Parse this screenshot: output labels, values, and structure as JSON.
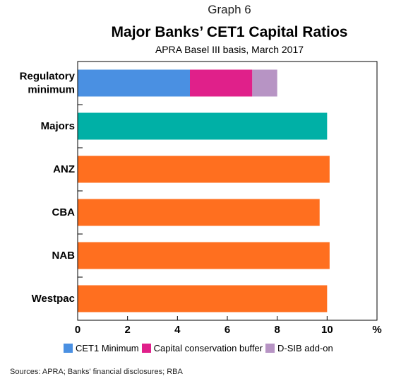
{
  "header": {
    "graph_number": "Graph 6",
    "title": "Major Banks’ CET1 Capital Ratios",
    "subtitle": "APRA Basel III basis, March 2017"
  },
  "sources": "Sources:  APRA; Banks' financial disclosures; RBA",
  "chart_data": {
    "type": "bar",
    "orientation": "horizontal",
    "stacked": true,
    "title": "Major Banks’ CET1 Capital Ratios",
    "subtitle": "APRA Basel III basis, March 2017",
    "categories": [
      "Regulatory minimum",
      "Majors",
      "ANZ",
      "CBA",
      "NAB",
      "Westpac"
    ],
    "category_labels": [
      [
        "Regulatory",
        "minimum"
      ],
      [
        "Majors"
      ],
      [
        "ANZ"
      ],
      [
        "CBA"
      ],
      [
        "NAB"
      ],
      [
        "Westpac"
      ]
    ],
    "series": [
      {
        "name": "CET1 Minimum",
        "color": "#4a90e2",
        "values": [
          4.5,
          null,
          null,
          null,
          null,
          null
        ]
      },
      {
        "name": "Capital conservation buffer",
        "color": "#e0208a",
        "values": [
          2.5,
          null,
          null,
          null,
          null,
          null
        ]
      },
      {
        "name": "D-SIB add-on",
        "color": "#b794c4",
        "values": [
          1.0,
          null,
          null,
          null,
          null,
          null
        ]
      }
    ],
    "bars": [
      {
        "category": "Majors",
        "value": 10.0,
        "color": "#00b0a6"
      },
      {
        "category": "ANZ",
        "value": 10.1,
        "color": "#ff6f1f"
      },
      {
        "category": "CBA",
        "value": 9.7,
        "color": "#ff6f1f"
      },
      {
        "category": "NAB",
        "value": 10.1,
        "color": "#ff6f1f"
      },
      {
        "category": "Westpac",
        "value": 10.0,
        "color": "#ff6f1f"
      }
    ],
    "xlim": [
      0,
      12
    ],
    "xticks": [
      "0",
      "2",
      "4",
      "6",
      "8",
      "10"
    ],
    "x_unit": "%",
    "legend": "bottom",
    "grid": false
  }
}
